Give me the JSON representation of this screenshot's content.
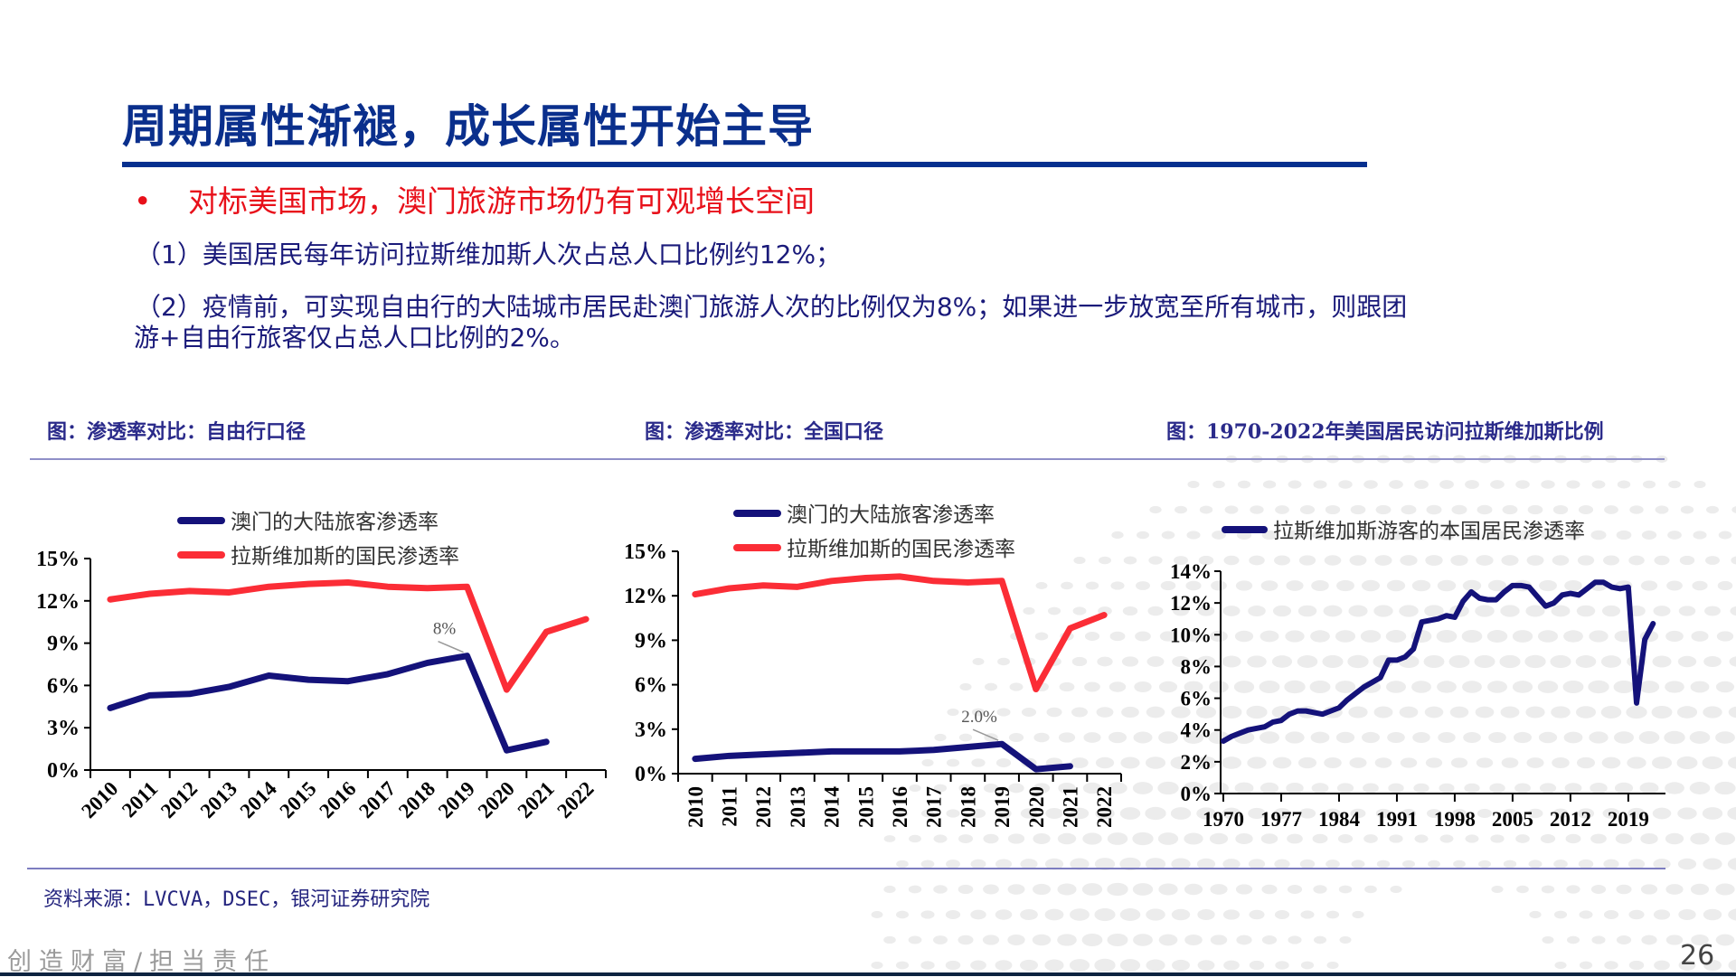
{
  "slide": {
    "title": "周期属性渐褪，成长属性开始主导",
    "bullet": "对标美国市场，澳门旅游市场仍有可观增长空间",
    "bullet_symbol": "•",
    "point1": "（1）美国居民每年访问拉斯维加斯人次占总人口比例约12%；",
    "point2_line1": "（2）疫情前，可实现自由行的大陆城市居民赴澳门旅游人次的比例仅为8%；如果进一步放宽至所有城市，则跟团",
    "point2_line2": "游+自由行旅客仅占总人口比例的2%。",
    "source": "资料来源：LVCVA，DSEC，银河证券研究院",
    "slogan": "创造财富/担当责任",
    "page_number": "26",
    "colors": {
      "title": "#0a2f8c",
      "bullet": "#e8101a",
      "macau_series": "#14127a",
      "vegas_series": "#fb2d36"
    }
  },
  "chart_data": [
    {
      "type": "line",
      "title": "图：渗透率对比：自由行口径",
      "categories": [
        "2010",
        "2011",
        "2012",
        "2013",
        "2014",
        "2015",
        "2016",
        "2017",
        "2018",
        "2019",
        "2020",
        "2021",
        "2022"
      ],
      "yticks": [
        "0%",
        "3%",
        "6%",
        "9%",
        "12%",
        "15%"
      ],
      "ylim": [
        0,
        15
      ],
      "series": [
        {
          "name": "澳门的大陆旅客渗透率",
          "color": "#14127a",
          "values": [
            4.4,
            5.3,
            5.4,
            5.9,
            6.7,
            6.4,
            6.3,
            6.8,
            7.6,
            8.1,
            1.4,
            2.0,
            null
          ]
        },
        {
          "name": "拉斯维加斯的国民渗透率",
          "color": "#fb2d36",
          "values": [
            12.1,
            12.5,
            12.7,
            12.6,
            13.0,
            13.2,
            13.3,
            13.0,
            12.9,
            13.0,
            5.7,
            9.8,
            10.7
          ]
        }
      ],
      "annotation": {
        "text": "8%",
        "series": 0,
        "category": "2019"
      },
      "legend": "top",
      "xlabel_rotation": "diagonal"
    },
    {
      "type": "line",
      "title": "图：渗透率对比：全国口径",
      "categories": [
        "2010",
        "2011",
        "2012",
        "2013",
        "2014",
        "2015",
        "2016",
        "2017",
        "2018",
        "2019",
        "2020",
        "2021",
        "2022"
      ],
      "yticks": [
        "0%",
        "3%",
        "6%",
        "9%",
        "12%",
        "15%"
      ],
      "ylim": [
        0,
        15
      ],
      "series": [
        {
          "name": "澳门的大陆旅客渗透率",
          "color": "#14127a",
          "values": [
            1.0,
            1.2,
            1.3,
            1.4,
            1.5,
            1.5,
            1.5,
            1.6,
            1.8,
            2.0,
            0.3,
            0.5,
            null
          ]
        },
        {
          "name": "拉斯维加斯的国民渗透率",
          "color": "#fb2d36",
          "values": [
            12.1,
            12.5,
            12.7,
            12.6,
            13.0,
            13.2,
            13.3,
            13.0,
            12.9,
            13.0,
            5.7,
            9.8,
            10.7
          ]
        }
      ],
      "annotation": {
        "text": "2.0%",
        "series": 0,
        "category": "2019"
      },
      "legend": "top",
      "xlabel_rotation": "vertical"
    },
    {
      "type": "line",
      "title": "图：1970-2022年美国居民访问拉斯维加斯比例",
      "x": [
        1970,
        1971,
        1972,
        1973,
        1974,
        1975,
        1976,
        1977,
        1978,
        1979,
        1980,
        1981,
        1982,
        1983,
        1984,
        1985,
        1986,
        1987,
        1988,
        1989,
        1990,
        1991,
        1992,
        1993,
        1994,
        1995,
        1996,
        1997,
        1998,
        1999,
        2000,
        2001,
        2002,
        2003,
        2004,
        2005,
        2006,
        2007,
        2008,
        2009,
        2010,
        2011,
        2012,
        2013,
        2014,
        2015,
        2016,
        2017,
        2018,
        2019,
        2020,
        2021,
        2022
      ],
      "xticks": [
        "1970",
        "1977",
        "1984",
        "1991",
        "1998",
        "2005",
        "2012",
        "2019"
      ],
      "yticks": [
        "0%",
        "2%",
        "4%",
        "6%",
        "8%",
        "10%",
        "12%",
        "14%"
      ],
      "ylim": [
        0,
        14
      ],
      "series": [
        {
          "name": "拉斯维加斯游客的本国居民渗透率",
          "color": "#14127a",
          "values": [
            3.3,
            3.6,
            3.8,
            4.0,
            4.1,
            4.2,
            4.5,
            4.6,
            5.0,
            5.2,
            5.2,
            5.1,
            5.0,
            5.2,
            5.4,
            5.9,
            6.3,
            6.7,
            7.0,
            7.3,
            8.4,
            8.4,
            8.6,
            9.1,
            10.8,
            10.9,
            11.0,
            11.2,
            11.1,
            12.1,
            12.7,
            12.3,
            12.2,
            12.2,
            12.7,
            13.1,
            13.1,
            13.0,
            12.4,
            11.8,
            12.0,
            12.5,
            12.6,
            12.5,
            12.9,
            13.3,
            13.3,
            13.0,
            12.9,
            13.0,
            5.7,
            9.7,
            10.7
          ]
        }
      ],
      "legend": "top"
    }
  ]
}
